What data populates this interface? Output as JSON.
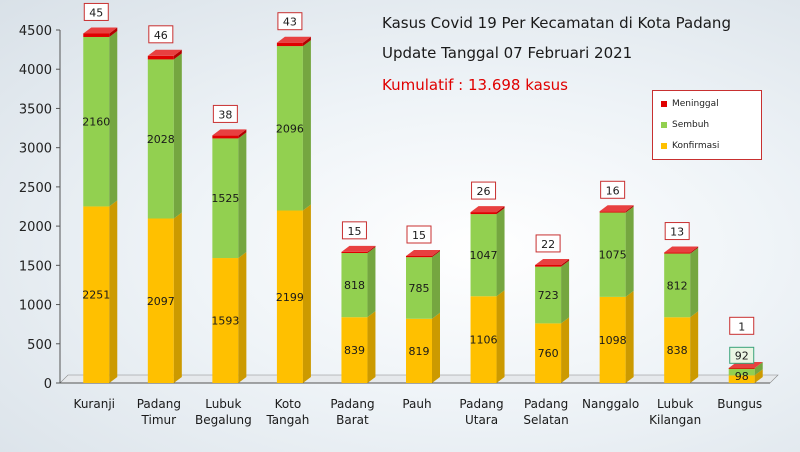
{
  "header": {
    "title_line1": "Kasus Covid 19 Per Kecamatan di Kota Padang",
    "title_line2": "Update Tanggal 07 Februari 2021",
    "kumulatif": "Kumulatif : 13.698 kasus"
  },
  "colors": {
    "konfirmasi": "#ffc000",
    "sembuh": "#92d050",
    "meninggal": "#e00000"
  },
  "chart_data": {
    "type": "bar",
    "stacked": true,
    "categories": [
      [
        "Kuranji"
      ],
      [
        "Padang",
        "Timur"
      ],
      [
        "Lubuk",
        "Begalung"
      ],
      [
        "Koto",
        "Tangah"
      ],
      [
        "Padang",
        "Barat"
      ],
      [
        "Pauh"
      ],
      [
        "Padang",
        "Utara"
      ],
      [
        "Padang",
        "Selatan"
      ],
      [
        "Nanggalo"
      ],
      [
        "Lubuk",
        "Kilangan"
      ],
      [
        "Bungus"
      ]
    ],
    "series": [
      {
        "name": "Konfirmasi",
        "values": [
          2251,
          2097,
          1593,
          2199,
          839,
          819,
          1106,
          760,
          1098,
          838,
          98
        ]
      },
      {
        "name": "Sembuh",
        "values": [
          2160,
          2028,
          1525,
          2096,
          818,
          785,
          1047,
          723,
          1075,
          812,
          92
        ]
      },
      {
        "name": "Meninggal",
        "values": [
          45,
          46,
          38,
          43,
          15,
          15,
          26,
          22,
          16,
          13,
          1
        ]
      }
    ],
    "legend_order": [
      "Meninggal",
      "Sembuh",
      "Konfirmasi"
    ],
    "yticks": [
      0,
      500,
      1000,
      1500,
      2000,
      2500,
      3000,
      3500,
      4000,
      4500
    ],
    "ylim": [
      0,
      4500
    ],
    "legend_position": "right",
    "grid": false
  }
}
